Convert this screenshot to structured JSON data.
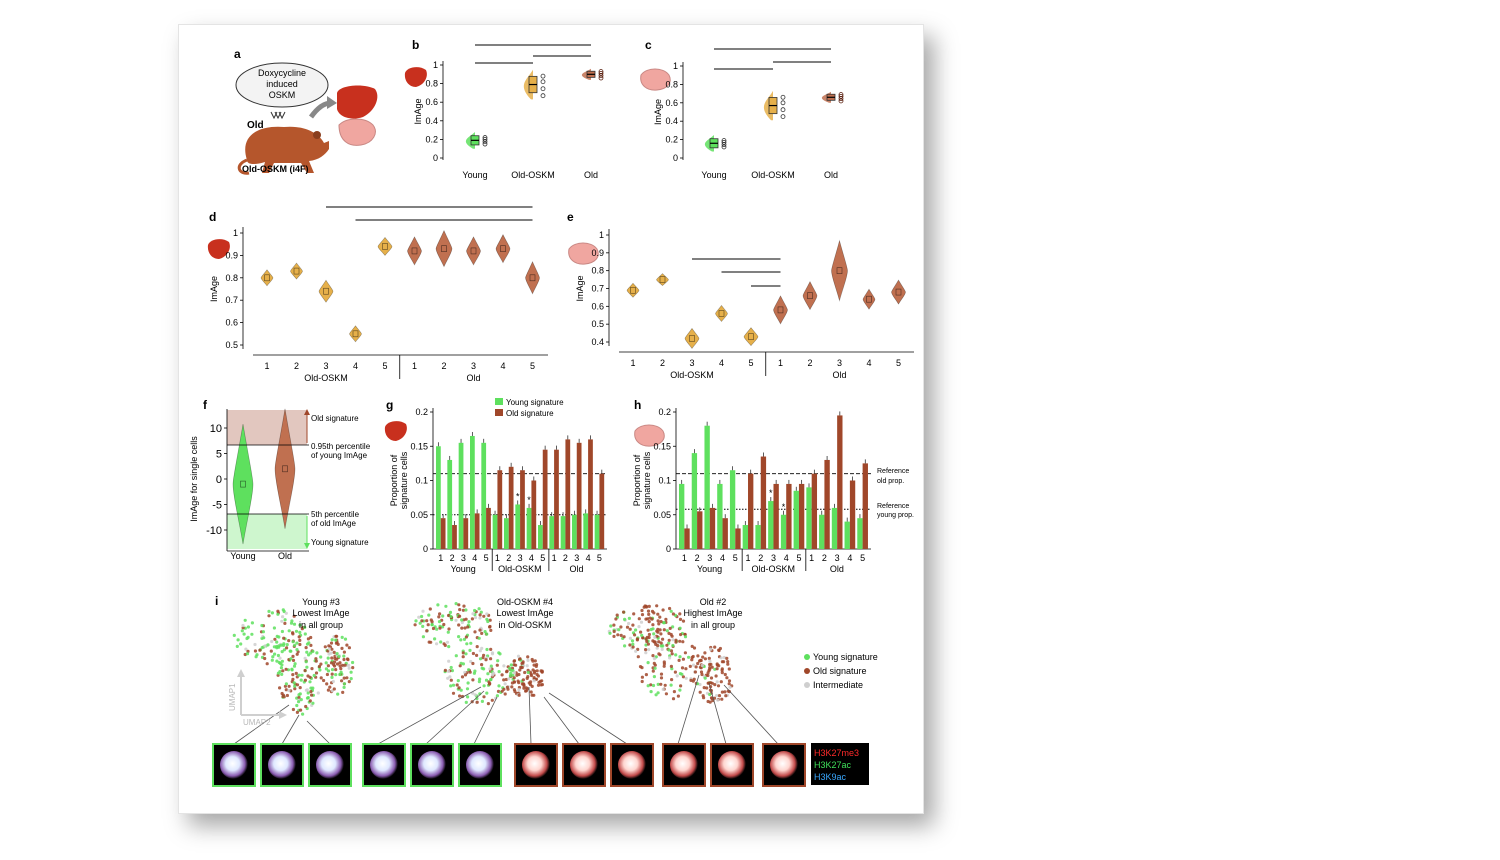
{
  "colors": {
    "young": "#5ee05e",
    "old": "#a0472a",
    "oskm": "#e6b04a",
    "intermediate": "#cfcfcf",
    "liver": "#c8301e",
    "muscle": "#f0a6a0",
    "mouse": "#b5562c",
    "h3k27me3": "#ff2a2a",
    "h3k27ac": "#3fe05a",
    "h3k9ac": "#3aa8ff"
  },
  "panel_a": {
    "letter": "a",
    "bubble_lines": [
      "Doxycycline",
      "induced",
      "OSKM"
    ],
    "mouse_label": "Old",
    "caption": "Old-OSKM (i4F)"
  },
  "panel_b": {
    "letter": "b",
    "ylabel": "ImAge",
    "yticks": [
      "0",
      "0.2",
      "0.4",
      "0.6",
      "0.8",
      "1"
    ],
    "categories": [
      "Young",
      "Old-OSKM",
      "Old"
    ],
    "medians": [
      0.19,
      0.79,
      0.9
    ],
    "sig": [
      "*",
      "*",
      "*"
    ]
  },
  "panel_c": {
    "letter": "c",
    "ylabel": "ImAge",
    "yticks": [
      "0",
      "0.2",
      "0.4",
      "0.6",
      "0.8",
      "1"
    ],
    "categories": [
      "Young",
      "Old-OSKM",
      "Old"
    ],
    "medians": [
      0.16,
      0.57,
      0.66
    ],
    "sig": [
      "*",
      "*",
      "*"
    ]
  },
  "panel_d": {
    "letter": "d",
    "ylabel": "ImAge",
    "yticks": [
      "0.5",
      "0.6",
      "0.7",
      "0.8",
      "0.9",
      "1"
    ],
    "ticks": [
      "1",
      "2",
      "3",
      "4",
      "5",
      "1",
      "2",
      "3",
      "4",
      "5"
    ],
    "groups": [
      "Old-OSKM",
      "Old"
    ],
    "medians": [
      0.8,
      0.83,
      0.74,
      0.55,
      0.94,
      0.92,
      0.93,
      0.92,
      0.93,
      0.8
    ],
    "sig": [
      "*",
      "*"
    ]
  },
  "panel_e": {
    "letter": "e",
    "ylabel": "ImAge",
    "yticks": [
      "0.4",
      "0.5",
      "0.6",
      "0.7",
      "0.8",
      "0.9",
      "1"
    ],
    "ticks": [
      "1",
      "2",
      "3",
      "4",
      "5",
      "1",
      "2",
      "3",
      "4",
      "5"
    ],
    "groups": [
      "Old-OSKM",
      "Old"
    ],
    "medians": [
      0.69,
      0.75,
      0.42,
      0.56,
      0.43,
      0.58,
      0.66,
      0.8,
      0.64,
      0.68
    ],
    "sig": [
      "*",
      "*",
      "*"
    ]
  },
  "panel_f": {
    "letter": "f",
    "ylabel": "ImAge for single cells",
    "yticks": [
      "10",
      "5",
      "0",
      "-5",
      "-10"
    ],
    "categories": [
      "Young",
      "Old"
    ],
    "annot_old": "Old signature",
    "annot_p95": [
      "0.95th percentile",
      "of young ImAge"
    ],
    "annot_p5": [
      "5th percentile",
      "of old ImAge"
    ],
    "annot_young": "Young signature"
  },
  "panel_g": {
    "letter": "g",
    "ylabel": [
      "Proportion of",
      "signature cells"
    ],
    "yticks": [
      "0",
      "0.05",
      "0.1",
      "0.15",
      "0.2"
    ],
    "legend": [
      "Young signature",
      "Old signature"
    ],
    "ticks": [
      "1",
      "2",
      "3",
      "4",
      "5",
      "1",
      "2",
      "3",
      "4",
      "5",
      "1",
      "2",
      "3",
      "4",
      "5"
    ],
    "groups": [
      "Young",
      "Old-OSKM",
      "Old"
    ],
    "young_values": [
      0.15,
      0.13,
      0.155,
      0.165,
      0.155,
      0.05,
      0.045,
      0.065,
      0.06,
      0.035,
      0.048,
      0.048,
      0.05,
      0.052,
      0.05
    ],
    "old_values": [
      0.045,
      0.035,
      0.045,
      0.052,
      0.06,
      0.115,
      0.12,
      0.115,
      0.1,
      0.145,
      0.145,
      0.16,
      0.155,
      0.16,
      0.11
    ],
    "star": "*"
  },
  "panel_h": {
    "letter": "h",
    "ylabel": [
      "Proportion of",
      "signature cells"
    ],
    "yticks": [
      "0",
      "0.05",
      "0.1",
      "0.15",
      "0.2"
    ],
    "ticks": [
      "1",
      "2",
      "3",
      "4",
      "5",
      "1",
      "2",
      "3",
      "4",
      "5",
      "1",
      "2",
      "3",
      "4",
      "5"
    ],
    "groups": [
      "Young",
      "Old-OSKM",
      "Old"
    ],
    "young_values": [
      0.095,
      0.14,
      0.18,
      0.095,
      0.115,
      0.035,
      0.035,
      0.07,
      0.05,
      0.085,
      0.09,
      0.05,
      0.06,
      0.04,
      0.045
    ],
    "old_values": [
      0.03,
      0.055,
      0.06,
      0.045,
      0.03,
      0.11,
      0.135,
      0.095,
      0.095,
      0.095,
      0.11,
      0.13,
      0.195,
      0.1,
      0.125
    ],
    "ref_old": [
      "Reference",
      "old prop."
    ],
    "ref_young": [
      "Reference",
      "young prop."
    ],
    "star": "*"
  },
  "panel_i": {
    "letter": "i",
    "umap_titles": [
      [
        "Young #3",
        "Lowest ImAge",
        "in all group"
      ],
      [
        "Old-OSKM #4",
        "Lowest ImAge",
        "in Old-OSKM"
      ],
      [
        "Old #2",
        "Highest ImAge",
        "in all group"
      ]
    ],
    "axis_labels": [
      "UMAP1",
      "UMAP2"
    ],
    "legend": [
      "Young signature",
      "Old signature",
      "Intermediate"
    ],
    "marker_labels": [
      "H3K27me3",
      "H3K27ac",
      "H3K9ac"
    ]
  }
}
